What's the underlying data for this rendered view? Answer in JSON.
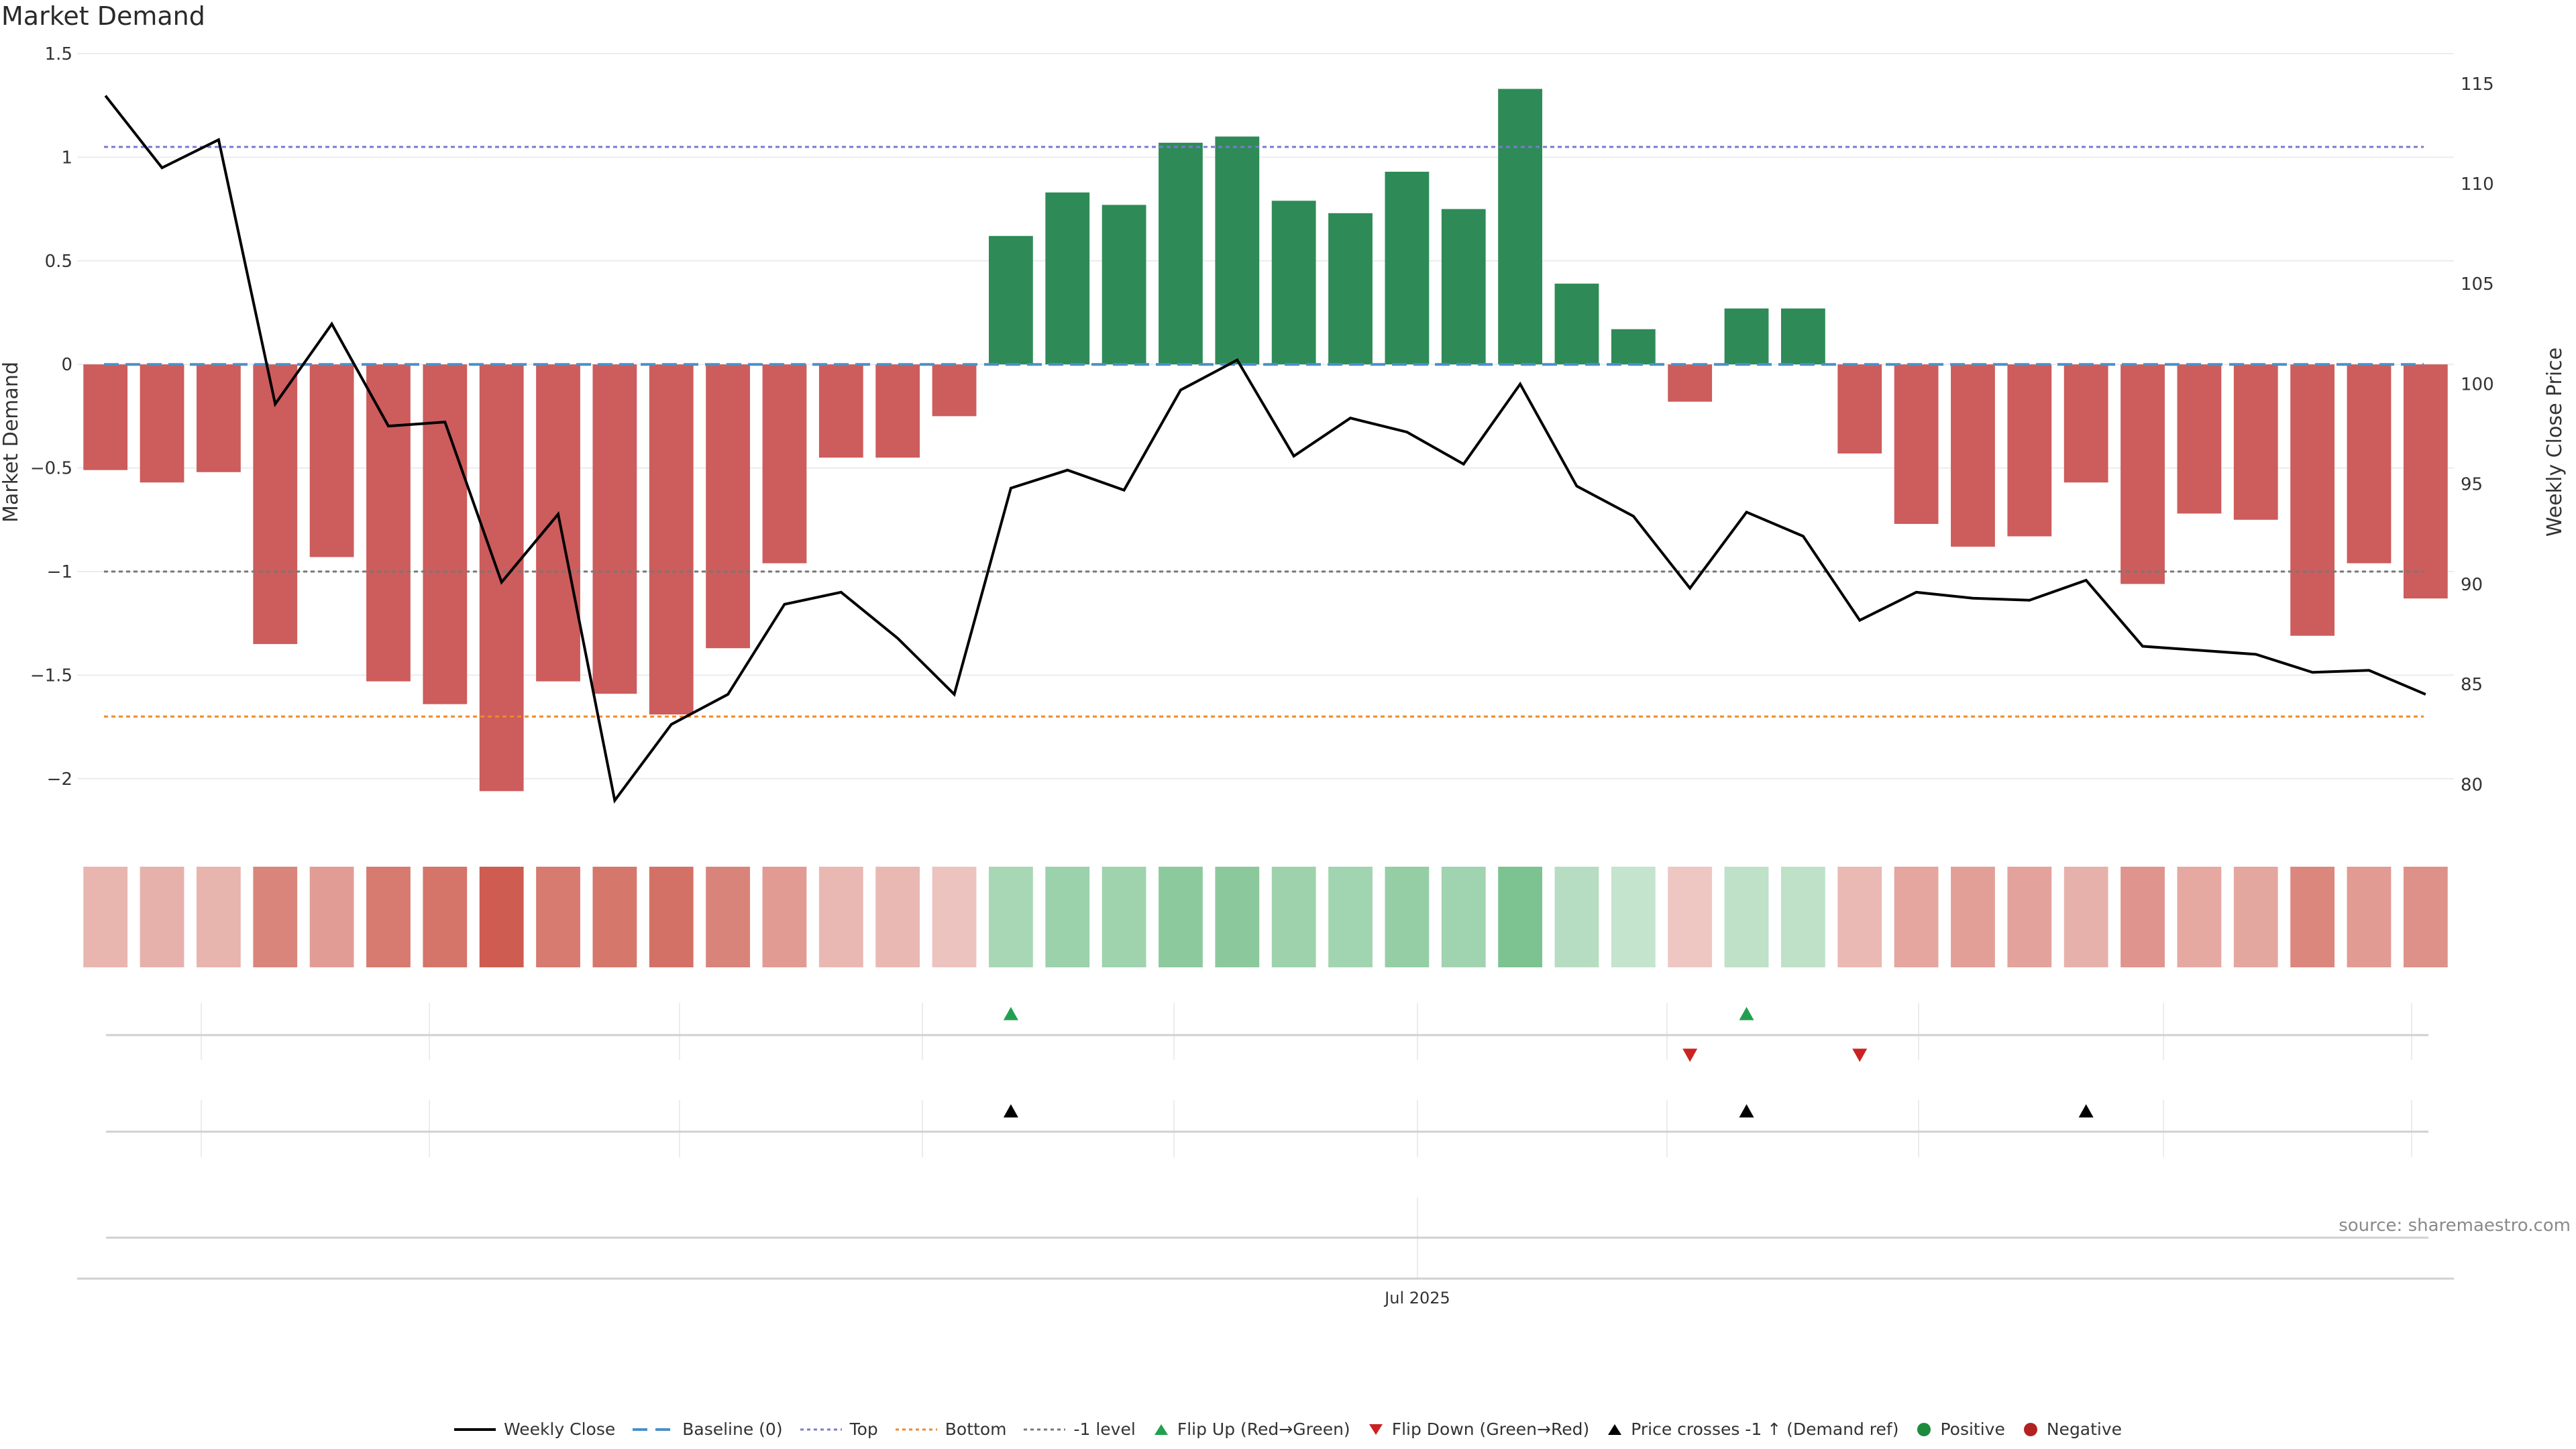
{
  "title": "Market Demand",
  "source": "source: sharemaestro.com",
  "colors": {
    "positive_bar": "#2e8b57",
    "negative_bar": "#cd5c5c",
    "price_line": "#000000",
    "baseline": "#4a90c8",
    "top": "#7a7ad0",
    "bottom": "#ee8a2a",
    "minus_one": "#777777",
    "flip_up": "#22a050",
    "flip_down": "#cc2222",
    "cross": "#000000",
    "positive_dot": "#1e8a3c",
    "negative_dot": "#b22222"
  },
  "chart_data": {
    "type": "bar",
    "title": "Market Demand",
    "ylabel": "Market Demand",
    "y2label": "Weekly Close Price",
    "ylim": [
      -2.25,
      1.5
    ],
    "y2lim": [
      77.7,
      116.5
    ],
    "yticks": [
      1.5,
      1,
      0.5,
      0,
      -0.5,
      -1,
      -1.5,
      -2
    ],
    "ytick_labels": [
      "1.5",
      "1",
      "0.5",
      "0",
      "−0.5",
      "−1",
      "−1.5",
      "−2"
    ],
    "y2ticks": [
      115,
      110,
      105,
      100,
      95,
      90,
      85,
      80
    ],
    "y2tick_labels": [
      "115",
      "110",
      "105",
      "100",
      "95",
      "90",
      "85",
      "80"
    ],
    "x_label": "Jul 2025",
    "x_label_index": 23.5,
    "levels": {
      "baseline": 0,
      "top": 1.05,
      "bottom": -1.7,
      "minus_one": -1
    },
    "demand": [
      -0.51,
      -0.57,
      -0.52,
      -1.35,
      -0.93,
      -1.53,
      -1.64,
      -2.06,
      -1.53,
      -1.59,
      -1.69,
      -1.37,
      -0.96,
      -0.45,
      -0.45,
      -0.25,
      0.62,
      0.83,
      0.77,
      1.07,
      1.1,
      0.79,
      0.73,
      0.93,
      0.75,
      1.33,
      0.39,
      0.17,
      -0.18,
      0.27,
      0.27,
      -0.43,
      -0.77,
      -0.88,
      -0.83,
      -0.57,
      -1.06,
      -0.72,
      -0.75,
      -1.31,
      -0.96,
      -1.13
    ],
    "weekly_close": [
      114.4,
      110.8,
      112.2,
      99.0,
      103.0,
      97.9,
      98.1,
      90.1,
      93.5,
      79.2,
      83.0,
      84.5,
      89.0,
      89.6,
      87.3,
      84.5,
      94.8,
      95.7,
      94.7,
      99.7,
      101.2,
      96.4,
      98.3,
      97.6,
      96.0,
      100.0,
      94.9,
      93.4,
      89.8,
      93.6,
      92.4,
      88.2,
      89.6,
      89.3,
      89.2,
      90.2,
      86.9,
      86.7,
      86.5,
      85.6,
      85.7,
      84.5
    ],
    "flip_up_indices": [
      16,
      29
    ],
    "flip_down_indices": [
      28,
      31
    ],
    "price_cross_indices": [
      16,
      29,
      35
    ]
  },
  "legend": [
    {
      "key": "weekly_close",
      "label": "Weekly Close"
    },
    {
      "key": "baseline",
      "label": "Baseline (0)"
    },
    {
      "key": "top",
      "label": "Top"
    },
    {
      "key": "bottom",
      "label": "Bottom"
    },
    {
      "key": "minus_one",
      "label": "-1 level"
    },
    {
      "key": "flip_up",
      "label": "Flip Up (Red→Green)"
    },
    {
      "key": "flip_down",
      "label": "Flip Down (Green→Red)"
    },
    {
      "key": "cross",
      "label": "Price crosses -1 ↑ (Demand ref)"
    },
    {
      "key": "positive",
      "label": "Positive"
    },
    {
      "key": "negative",
      "label": "Negative"
    }
  ]
}
